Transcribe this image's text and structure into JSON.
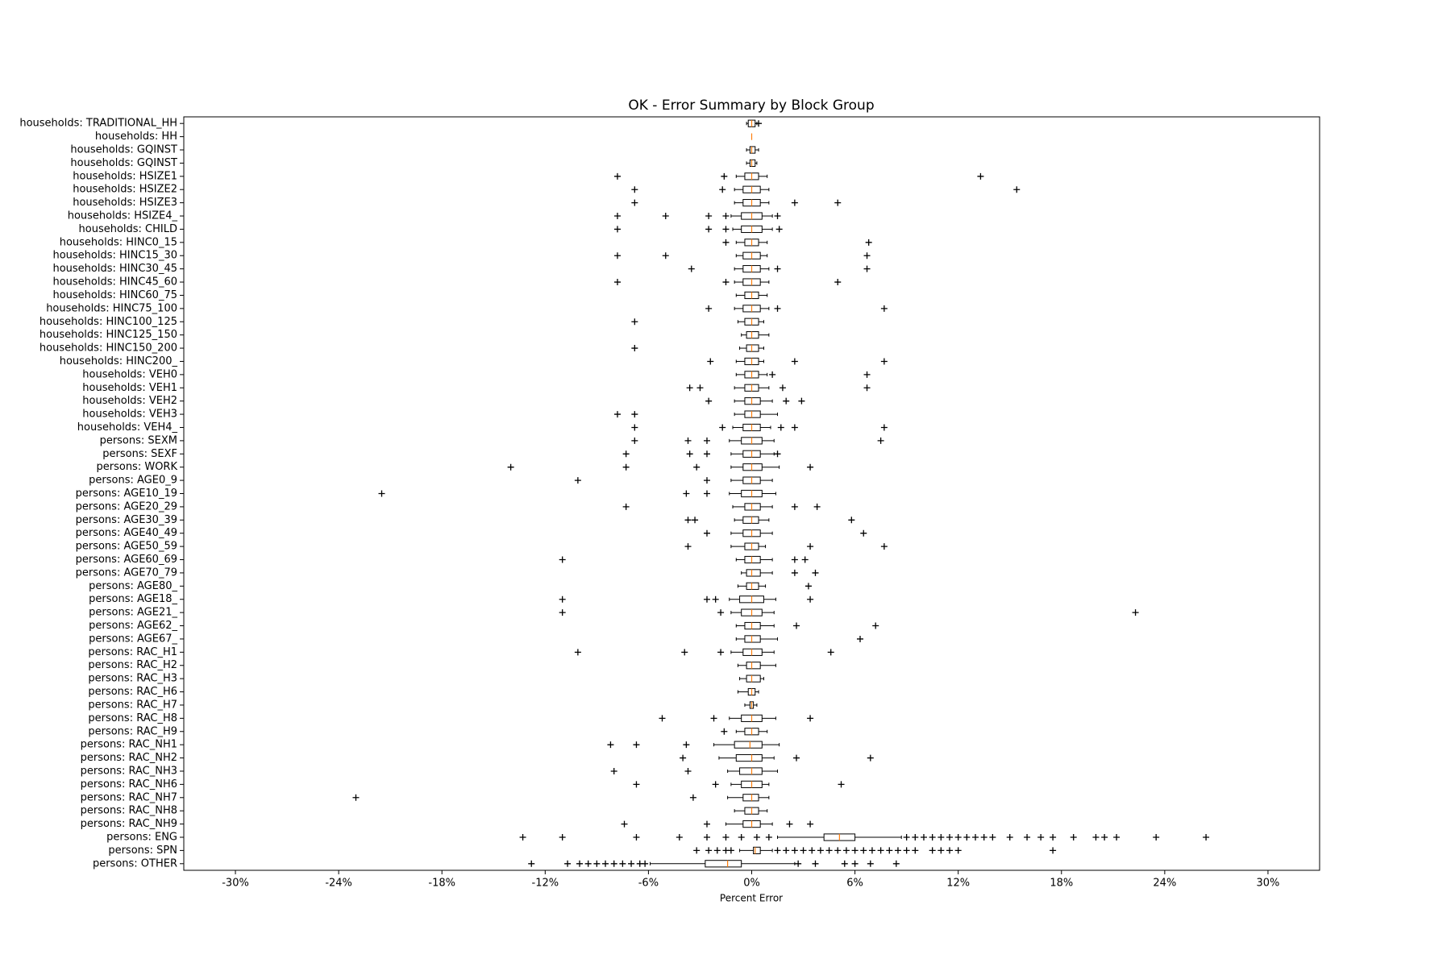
{
  "chart_data": {
    "type": "boxplot",
    "title": "OK - Error Summary by Block Group",
    "x_label": "Percent Error",
    "xlim": [
      -33,
      33
    ],
    "xticks": [
      {
        "value": -30,
        "label": "-30%"
      },
      {
        "value": -24,
        "label": "-24%"
      },
      {
        "value": -18,
        "label": "-18%"
      },
      {
        "value": -12,
        "label": "-12%"
      },
      {
        "value": -6,
        "label": "-6%"
      },
      {
        "value": 0,
        "label": "0%"
      },
      {
        "value": 6,
        "label": "6%"
      },
      {
        "value": 12,
        "label": "12%"
      },
      {
        "value": 18,
        "label": "18%"
      },
      {
        "value": 24,
        "label": "24%"
      },
      {
        "value": 30,
        "label": "30%"
      }
    ],
    "box_color": "#000000",
    "median_color": "#ff7f0e",
    "categories": [
      "households: TRADITIONAL_HH",
      "households: HH",
      "households: GQINST",
      "households: GQINST",
      "households: HSIZE1",
      "households: HSIZE2",
      "households: HSIZE3",
      "households: HSIZE4_",
      "households: CHILD",
      "households: HINC0_15",
      "households: HINC15_30",
      "households: HINC30_45",
      "households: HINC45_60",
      "households: HINC60_75",
      "households: HINC75_100",
      "households: HINC100_125",
      "households: HINC125_150",
      "households: HINC150_200",
      "households: HINC200_",
      "households: VEH0",
      "households: VEH1",
      "households: VEH2",
      "households: VEH3",
      "households: VEH4_",
      "persons: SEXM",
      "persons: SEXF",
      "persons: WORK",
      "persons: AGE0_9",
      "persons: AGE10_19",
      "persons: AGE20_29",
      "persons: AGE30_39",
      "persons: AGE40_49",
      "persons: AGE50_59",
      "persons: AGE60_69",
      "persons: AGE70_79",
      "persons: AGE80_",
      "persons: AGE18_",
      "persons: AGE21_",
      "persons: AGE62_",
      "persons: AGE67_",
      "persons: RAC_H1",
      "persons: RAC_H2",
      "persons: RAC_H3",
      "persons: RAC_H6",
      "persons: RAC_H7",
      "persons: RAC_H8",
      "persons: RAC_H9",
      "persons: RAC_NH1",
      "persons: RAC_NH2",
      "persons: RAC_NH3",
      "persons: RAC_NH6",
      "persons: RAC_NH7",
      "persons: RAC_NH8",
      "persons: RAC_NH9",
      "persons: ENG",
      "persons: SPN",
      "persons: OTHER"
    ],
    "boxes": [
      {
        "whislo": -0.3,
        "q1": -0.2,
        "med": 0,
        "q3": 0.2,
        "whishi": 0.3,
        "fliers": [
          0.4
        ]
      },
      {
        "whislo": 0,
        "q1": 0,
        "med": 0,
        "q3": 0,
        "whishi": 0,
        "fliers": []
      },
      {
        "whislo": -0.3,
        "q1": -0.1,
        "med": 0,
        "q3": 0.2,
        "whishi": 0.4,
        "fliers": []
      },
      {
        "whislo": -0.3,
        "q1": -0.1,
        "med": 0,
        "q3": 0.2,
        "whishi": 0.3,
        "fliers": []
      },
      {
        "whislo": -0.9,
        "q1": -0.4,
        "med": 0,
        "q3": 0.4,
        "whishi": 0.9,
        "fliers": [
          -7.8,
          -1.6,
          13.3
        ]
      },
      {
        "whislo": -1.0,
        "q1": -0.5,
        "med": 0,
        "q3": 0.5,
        "whishi": 1.0,
        "fliers": [
          -6.8,
          -1.7,
          15.4
        ]
      },
      {
        "whislo": -1.0,
        "q1": -0.5,
        "med": 0,
        "q3": 0.5,
        "whishi": 1.0,
        "fliers": [
          -6.8,
          2.5,
          5.0
        ]
      },
      {
        "whislo": -1.2,
        "q1": -0.6,
        "med": 0,
        "q3": 0.6,
        "whishi": 1.2,
        "fliers": [
          -7.8,
          -5.0,
          -2.5,
          -1.5,
          1.5
        ]
      },
      {
        "whislo": -1.1,
        "q1": -0.6,
        "med": 0,
        "q3": 0.6,
        "whishi": 1.2,
        "fliers": [
          -7.8,
          -2.5,
          -1.5,
          1.6
        ]
      },
      {
        "whislo": -0.9,
        "q1": -0.4,
        "med": 0,
        "q3": 0.4,
        "whishi": 0.9,
        "fliers": [
          -1.5,
          6.8
        ]
      },
      {
        "whislo": -0.9,
        "q1": -0.5,
        "med": 0,
        "q3": 0.5,
        "whishi": 0.9,
        "fliers": [
          -7.8,
          -5.0,
          6.7
        ]
      },
      {
        "whislo": -1.0,
        "q1": -0.5,
        "med": 0,
        "q3": 0.5,
        "whishi": 1.0,
        "fliers": [
          -3.5,
          1.5,
          6.7
        ]
      },
      {
        "whislo": -1.0,
        "q1": -0.5,
        "med": 0,
        "q3": 0.5,
        "whishi": 1.0,
        "fliers": [
          -7.8,
          -1.5,
          5.0
        ]
      },
      {
        "whislo": -0.9,
        "q1": -0.4,
        "med": 0,
        "q3": 0.4,
        "whishi": 0.9,
        "fliers": []
      },
      {
        "whislo": -1.0,
        "q1": -0.5,
        "med": 0,
        "q3": 0.5,
        "whishi": 1.0,
        "fliers": [
          -2.5,
          1.5,
          7.7
        ]
      },
      {
        "whislo": -0.8,
        "q1": -0.4,
        "med": 0,
        "q3": 0.4,
        "whishi": 0.7,
        "fliers": [
          -6.8
        ]
      },
      {
        "whislo": -0.6,
        "q1": -0.3,
        "med": 0,
        "q3": 0.4,
        "whishi": 1.0,
        "fliers": []
      },
      {
        "whislo": -0.7,
        "q1": -0.3,
        "med": 0,
        "q3": 0.4,
        "whishi": 0.7,
        "fliers": [
          -6.8
        ]
      },
      {
        "whislo": -0.9,
        "q1": -0.4,
        "med": 0,
        "q3": 0.4,
        "whishi": 0.7,
        "fliers": [
          -2.4,
          2.5,
          7.7
        ]
      },
      {
        "whislo": -0.9,
        "q1": -0.4,
        "med": 0,
        "q3": 0.4,
        "whishi": 0.9,
        "fliers": [
          1.2,
          6.7
        ]
      },
      {
        "whislo": -1.0,
        "q1": -0.4,
        "med": 0,
        "q3": 0.4,
        "whishi": 1.0,
        "fliers": [
          -3.6,
          -3.0,
          1.8,
          6.7
        ]
      },
      {
        "whislo": -1.0,
        "q1": -0.4,
        "med": 0,
        "q3": 0.5,
        "whishi": 1.2,
        "fliers": [
          -2.5,
          2.0,
          2.9
        ]
      },
      {
        "whislo": -1.0,
        "q1": -0.4,
        "med": 0,
        "q3": 0.5,
        "whishi": 1.5,
        "fliers": [
          -7.8,
          -6.8
        ]
      },
      {
        "whislo": -1.1,
        "q1": -0.5,
        "med": 0,
        "q3": 0.5,
        "whishi": 1.1,
        "fliers": [
          -6.8,
          -1.7,
          1.7,
          2.5,
          7.7
        ]
      },
      {
        "whislo": -1.3,
        "q1": -0.6,
        "med": 0,
        "q3": 0.6,
        "whishi": 1.3,
        "fliers": [
          -6.8,
          -3.7,
          -2.6,
          7.5
        ]
      },
      {
        "whislo": -1.2,
        "q1": -0.5,
        "med": 0,
        "q3": 0.5,
        "whishi": 1.3,
        "fliers": [
          -7.3,
          -3.6,
          -2.6,
          1.5
        ]
      },
      {
        "whislo": -1.2,
        "q1": -0.5,
        "med": 0,
        "q3": 0.6,
        "whishi": 1.6,
        "fliers": [
          -14.0,
          -7.3,
          -3.2,
          3.4
        ]
      },
      {
        "whislo": -1.2,
        "q1": -0.5,
        "med": 0,
        "q3": 0.5,
        "whishi": 1.2,
        "fliers": [
          -10.1,
          -2.6
        ]
      },
      {
        "whislo": -1.3,
        "q1": -0.6,
        "med": 0,
        "q3": 0.6,
        "whishi": 1.4,
        "fliers": [
          -21.5,
          -3.8,
          -2.6
        ]
      },
      {
        "whislo": -1.1,
        "q1": -0.4,
        "med": 0,
        "q3": 0.5,
        "whishi": 1.2,
        "fliers": [
          -7.3,
          2.5,
          3.8
        ]
      },
      {
        "whislo": -1.0,
        "q1": -0.5,
        "med": 0,
        "q3": 0.4,
        "whishi": 1.0,
        "fliers": [
          -3.7,
          -3.3,
          5.8
        ]
      },
      {
        "whislo": -1.2,
        "q1": -0.5,
        "med": 0,
        "q3": 0.5,
        "whishi": 1.2,
        "fliers": [
          -2.6,
          6.5
        ]
      },
      {
        "whislo": -1.2,
        "q1": -0.4,
        "med": 0,
        "q3": 0.4,
        "whishi": 0.8,
        "fliers": [
          -3.7,
          3.4,
          7.7
        ]
      },
      {
        "whislo": -0.9,
        "q1": -0.4,
        "med": 0,
        "q3": 0.5,
        "whishi": 1.2,
        "fliers": [
          -11.0,
          2.5,
          3.1
        ]
      },
      {
        "whislo": -0.6,
        "q1": -0.3,
        "med": 0,
        "q3": 0.5,
        "whishi": 1.2,
        "fliers": [
          2.5,
          3.7
        ]
      },
      {
        "whislo": -0.8,
        "q1": -0.3,
        "med": 0,
        "q3": 0.4,
        "whishi": 0.8,
        "fliers": [
          3.3
        ]
      },
      {
        "whislo": -1.3,
        "q1": -0.7,
        "med": 0,
        "q3": 0.7,
        "whishi": 1.4,
        "fliers": [
          -11.0,
          -2.6,
          -2.1,
          3.4
        ]
      },
      {
        "whislo": -1.2,
        "q1": -0.6,
        "med": 0,
        "q3": 0.6,
        "whishi": 1.3,
        "fliers": [
          -11.0,
          -1.8,
          22.3
        ]
      },
      {
        "whislo": -0.9,
        "q1": -0.4,
        "med": 0,
        "q3": 0.5,
        "whishi": 1.3,
        "fliers": [
          2.6,
          7.2
        ]
      },
      {
        "whislo": -0.9,
        "q1": -0.4,
        "med": 0,
        "q3": 0.5,
        "whishi": 1.5,
        "fliers": [
          6.3
        ]
      },
      {
        "whislo": -1.2,
        "q1": -0.5,
        "med": 0,
        "q3": 0.6,
        "whishi": 1.3,
        "fliers": [
          -10.1,
          -3.9,
          -1.8,
          4.6
        ]
      },
      {
        "whislo": -0.8,
        "q1": -0.3,
        "med": 0,
        "q3": 0.5,
        "whishi": 1.4,
        "fliers": []
      },
      {
        "whislo": -0.7,
        "q1": -0.3,
        "med": 0,
        "q3": 0.5,
        "whishi": 0.7,
        "fliers": []
      },
      {
        "whislo": -0.8,
        "q1": -0.2,
        "med": 0,
        "q3": 0.2,
        "whishi": 0.4,
        "fliers": []
      },
      {
        "whislo": -0.4,
        "q1": -0.1,
        "med": 0,
        "q3": 0.1,
        "whishi": 0.3,
        "fliers": []
      },
      {
        "whislo": -1.3,
        "q1": -0.6,
        "med": 0,
        "q3": 0.6,
        "whishi": 1.4,
        "fliers": [
          -5.2,
          -2.2,
          3.4
        ]
      },
      {
        "whislo": -0.9,
        "q1": -0.4,
        "med": 0,
        "q3": 0.4,
        "whishi": 0.9,
        "fliers": [
          -1.6
        ]
      },
      {
        "whislo": -2.2,
        "q1": -1.0,
        "med": -0.1,
        "q3": 0.6,
        "whishi": 1.6,
        "fliers": [
          -8.2,
          -6.7,
          -3.8
        ]
      },
      {
        "whislo": -1.9,
        "q1": -0.9,
        "med": 0,
        "q3": 0.6,
        "whishi": 1.3,
        "fliers": [
          -4.0,
          2.6,
          6.9
        ]
      },
      {
        "whislo": -1.4,
        "q1": -0.7,
        "med": 0,
        "q3": 0.6,
        "whishi": 1.5,
        "fliers": [
          -8.0,
          -3.7
        ]
      },
      {
        "whislo": -1.2,
        "q1": -0.6,
        "med": 0,
        "q3": 0.6,
        "whishi": 1.0,
        "fliers": [
          -6.7,
          -2.1,
          5.2
        ]
      },
      {
        "whislo": -1.4,
        "q1": -0.5,
        "med": 0,
        "q3": 0.4,
        "whishi": 1.0,
        "fliers": [
          -23.0,
          -3.4
        ]
      },
      {
        "whislo": -1.0,
        "q1": -0.4,
        "med": 0,
        "q3": 0.4,
        "whishi": 0.9,
        "fliers": []
      },
      {
        "whislo": -1.5,
        "q1": -0.5,
        "med": 0,
        "q3": 0.5,
        "whishi": 1.2,
        "fliers": [
          -7.4,
          -2.6,
          2.2,
          3.4
        ]
      },
      {
        "whislo": 1.5,
        "q1": 4.2,
        "med": 5.1,
        "q3": 6.0,
        "whishi": 8.7,
        "fliers": [
          -13.3,
          -11.0,
          -6.7,
          -4.2,
          -2.6,
          -1.5,
          -0.6,
          0.3,
          1.0,
          9.0,
          9.5,
          10.0,
          10.5,
          11.0,
          11.5,
          12.0,
          12.5,
          13.0,
          13.5,
          14.0,
          15.0,
          16.0,
          16.8,
          17.5,
          18.7,
          20.0,
          20.5,
          21.2,
          23.5,
          26.4
        ]
      },
      {
        "whislo": -0.7,
        "q1": 0.1,
        "med": 0.2,
        "q3": 0.5,
        "whishi": 1.2,
        "fliers": [
          -3.2,
          -2.5,
          -2.0,
          -1.5,
          -1.2,
          1.5,
          2.0,
          2.5,
          3.0,
          3.5,
          4.0,
          4.5,
          5.0,
          5.5,
          6.0,
          6.5,
          7.0,
          7.5,
          8.0,
          8.5,
          9.0,
          9.5,
          10.5,
          11.0,
          11.5,
          12.0,
          17.5
        ]
      },
      {
        "whislo": -5.9,
        "q1": -2.7,
        "med": -1.4,
        "q3": -0.6,
        "whishi": 2.5,
        "fliers": [
          -12.8,
          -10.7,
          -10.0,
          -9.5,
          -9.0,
          -8.5,
          -8.0,
          -7.5,
          -7.0,
          -6.5,
          -6.2,
          2.7,
          3.7,
          5.4,
          6.0,
          6.9,
          8.4
        ]
      }
    ]
  }
}
